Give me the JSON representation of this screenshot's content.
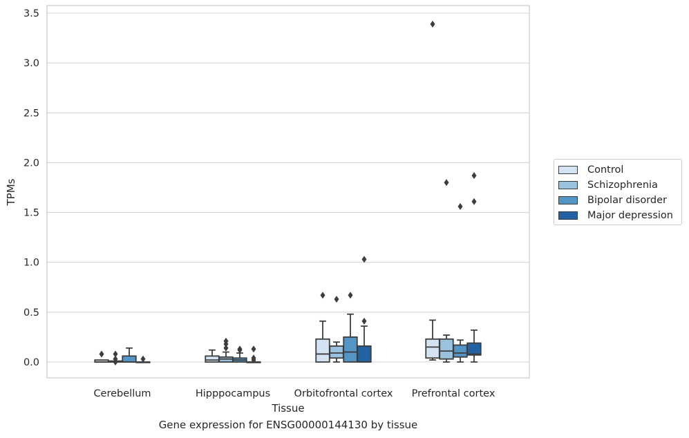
{
  "chart_data": {
    "type": "boxplot",
    "xlabel": "Tissue",
    "ylabel": "TPMs",
    "caption": "Gene expression for ENSG00000144130 by tissue",
    "ylim": [
      -0.17,
      3.56
    ],
    "yticks": [
      0.0,
      0.5,
      1.0,
      1.5,
      2.0,
      2.5,
      3.0,
      3.5
    ],
    "ytick_labels": [
      "0.0",
      "0.5",
      "1.0",
      "1.5",
      "2.0",
      "2.5",
      "3.0",
      "3.5"
    ],
    "grid": "horizontal",
    "legend_position": "right",
    "categories": [
      "Cerebellum",
      "Hipppocampus",
      "Orbitofrontal cortex",
      "Prefrontal cortex"
    ],
    "series": [
      {
        "name": "Control",
        "color": "#d4e3f2",
        "boxes": [
          {
            "q1": 0.0,
            "median": 0.0,
            "q3": 0.02,
            "whisker_low": 0.0,
            "whisker_high": 0.02,
            "outliers": [
              0.08
            ]
          },
          {
            "q1": 0.0,
            "median": 0.02,
            "q3": 0.06,
            "whisker_low": 0.0,
            "whisker_high": 0.12,
            "outliers": []
          },
          {
            "q1": 0.0,
            "median": 0.08,
            "q3": 0.23,
            "whisker_low": 0.0,
            "whisker_high": 0.41,
            "outliers": [
              0.67
            ]
          },
          {
            "q1": 0.04,
            "median": 0.15,
            "q3": 0.23,
            "whisker_low": 0.02,
            "whisker_high": 0.42,
            "outliers": [
              3.39
            ]
          }
        ]
      },
      {
        "name": "Schizophrenia",
        "color": "#9ac3df",
        "boxes": [
          {
            "q1": 0.0,
            "median": 0.0,
            "q3": 0.01,
            "whisker_low": 0.0,
            "whisker_high": 0.01,
            "outliers": [
              0.0,
              0.03,
              0.08
            ]
          },
          {
            "q1": 0.0,
            "median": 0.03,
            "q3": 0.05,
            "whisker_low": 0.0,
            "whisker_high": 0.1,
            "outliers": [
              0.14,
              0.18,
              0.21
            ]
          },
          {
            "q1": 0.04,
            "median": 0.09,
            "q3": 0.16,
            "whisker_low": 0.0,
            "whisker_high": 0.2,
            "outliers": [
              0.63
            ]
          },
          {
            "q1": 0.03,
            "median": 0.11,
            "q3": 0.23,
            "whisker_low": 0.0,
            "whisker_high": 0.27,
            "outliers": [
              1.8
            ]
          }
        ]
      },
      {
        "name": "Bipolar disorder",
        "color": "#5396c6",
        "boxes": [
          {
            "q1": 0.0,
            "median": 0.0,
            "q3": 0.06,
            "whisker_low": 0.0,
            "whisker_high": 0.14,
            "outliers": []
          },
          {
            "q1": 0.0,
            "median": 0.02,
            "q3": 0.04,
            "whisker_low": 0.0,
            "whisker_high": 0.09,
            "outliers": [
              0.12,
              0.13
            ]
          },
          {
            "q1": 0.0,
            "median": 0.1,
            "q3": 0.25,
            "whisker_low": 0.0,
            "whisker_high": 0.48,
            "outliers": [
              0.67
            ]
          },
          {
            "q1": 0.05,
            "median": 0.09,
            "q3": 0.17,
            "whisker_low": 0.0,
            "whisker_high": 0.22,
            "outliers": [
              1.56
            ]
          }
        ]
      },
      {
        "name": "Major depression",
        "color": "#2362a2",
        "boxes": [
          {
            "q1": 0.0,
            "median": 0.0,
            "q3": 0.0,
            "whisker_low": 0.0,
            "whisker_high": 0.0,
            "outliers": [
              0.03
            ]
          },
          {
            "q1": 0.0,
            "median": 0.0,
            "q3": 0.0,
            "whisker_low": 0.0,
            "whisker_high": 0.0,
            "outliers": [
              0.02,
              0.04,
              0.13
            ]
          },
          {
            "q1": 0.0,
            "median": 0.0,
            "q3": 0.16,
            "whisker_low": 0.0,
            "whisker_high": 0.36,
            "outliers": [
              0.41,
              1.03
            ]
          },
          {
            "q1": 0.07,
            "median": 0.08,
            "q3": 0.19,
            "whisker_low": 0.0,
            "whisker_high": 0.32,
            "outliers": [
              1.61,
              1.87
            ]
          }
        ]
      }
    ]
  }
}
